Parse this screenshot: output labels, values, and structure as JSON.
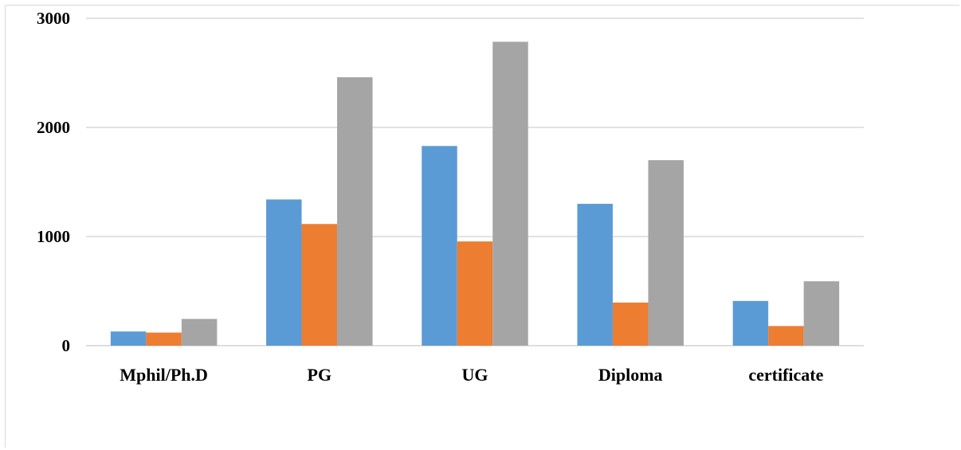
{
  "chart_data": {
    "type": "bar",
    "categories": [
      "Mphil/Ph.D",
      "PG",
      "UG",
      "Diploma",
      "certificate"
    ],
    "series": [
      {
        "color": "#5b9bd5",
        "values": [
          130,
          1340,
          1830,
          1300,
          410
        ]
      },
      {
        "color": "#ed7d31",
        "values": [
          120,
          1115,
          955,
          395,
          180
        ]
      },
      {
        "color": "#a5a5a5",
        "values": [
          245,
          2460,
          2785,
          1700,
          590
        ]
      }
    ],
    "yticks": [
      0,
      1000,
      2000,
      3000
    ],
    "ylim": [
      0,
      3000
    ],
    "grid": true,
    "legend": "none"
  }
}
